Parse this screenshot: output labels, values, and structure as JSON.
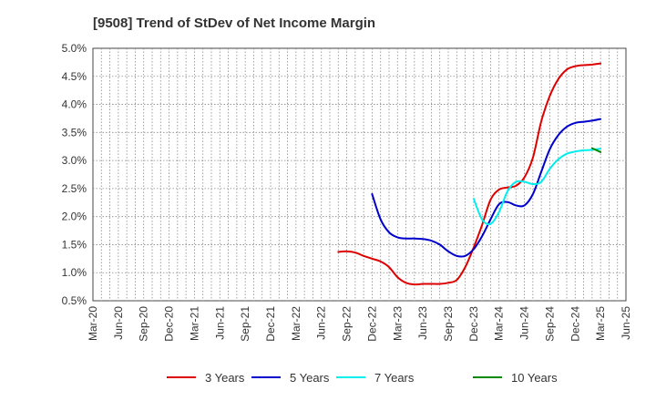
{
  "chart_data": {
    "type": "line",
    "title": "[9508]  Trend of StDev of Net Income Margin",
    "xlabel": "",
    "ylabel": "",
    "x_tick_labels": [
      "Mar-20",
      "Jun-20",
      "Sep-20",
      "Dec-20",
      "Mar-21",
      "Jun-21",
      "Sep-21",
      "Dec-21",
      "Mar-22",
      "Jun-22",
      "Sep-22",
      "Dec-22",
      "Mar-23",
      "Jun-23",
      "Sep-23",
      "Dec-23",
      "Mar-24",
      "Jun-24",
      "Sep-24",
      "Dec-24",
      "Mar-25",
      "Jun-25"
    ],
    "y_tick_labels": [
      "0.5%",
      "1.0%",
      "1.5%",
      "2.0%",
      "2.5%",
      "3.0%",
      "3.5%",
      "4.0%",
      "4.5%",
      "5.0%"
    ],
    "ylim": [
      0.5,
      5.0
    ],
    "grid": true,
    "legend_position": "bottom",
    "series": [
      {
        "name": "3 Years",
        "color": "#dd0000",
        "values": [
          1.37,
          1.38,
          1.36,
          1.3,
          1.25,
          1.2,
          1.1,
          0.92,
          0.82,
          0.79,
          0.8,
          0.8,
          0.8,
          0.82,
          0.87,
          1.1,
          1.45,
          1.85,
          2.3,
          2.48,
          2.52,
          2.55,
          2.7,
          3.05,
          3.7,
          4.15,
          4.45,
          4.62,
          4.68,
          4.7,
          4.71,
          4.73
        ]
      },
      {
        "name": "5 Years",
        "color": "#0000cc",
        "values": [
          2.4,
          1.95,
          1.72,
          1.63,
          1.61,
          1.61,
          1.6,
          1.57,
          1.5,
          1.38,
          1.3,
          1.3,
          1.42,
          1.65,
          1.95,
          2.22,
          2.26,
          2.2,
          2.2,
          2.4,
          2.8,
          3.2,
          3.45,
          3.6,
          3.67,
          3.69,
          3.71,
          3.74
        ]
      },
      {
        "name": "7 Years",
        "color": "#00eeee",
        "values": [
          2.32,
          1.95,
          1.87,
          2.08,
          2.45,
          2.62,
          2.62,
          2.58,
          2.62,
          2.85,
          3.02,
          3.12,
          3.16,
          3.18,
          3.19,
          3.21
        ]
      },
      {
        "name": "10 Years",
        "color": "#008800",
        "values": [
          3.22,
          3.15
        ]
      }
    ]
  }
}
